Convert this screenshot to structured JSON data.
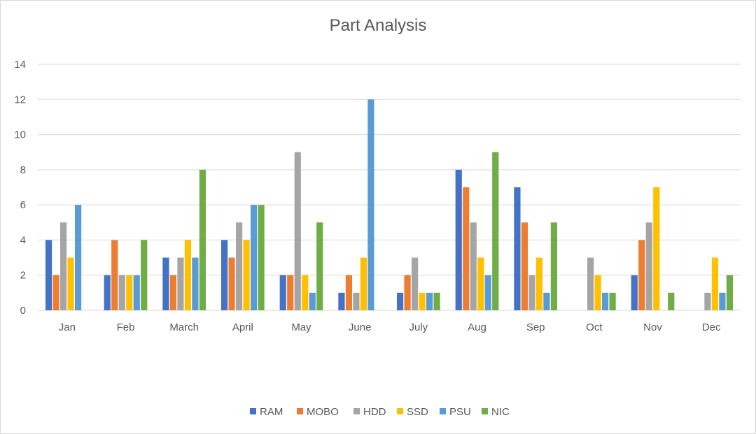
{
  "chart_data": {
    "type": "bar",
    "title": "Part Analysis",
    "xlabel": "",
    "ylabel": "",
    "categories": [
      "Jan",
      "Feb",
      "March",
      "April",
      "May",
      "June",
      "July",
      "Aug",
      "Sep",
      "Oct",
      "Nov",
      "Dec"
    ],
    "y_ticks": [
      "0",
      "2",
      "4",
      "6",
      "8",
      "10",
      "12",
      "14"
    ],
    "ylim": [
      0,
      14
    ],
    "grid": true,
    "legend_position": "bottom",
    "series": [
      {
        "name": "RAM",
        "color": "#4472C4",
        "values": [
          4,
          2,
          3,
          4,
          2,
          1,
          1,
          8,
          7,
          0,
          2,
          0
        ]
      },
      {
        "name": "MOBO",
        "color": "#ED7D31",
        "values": [
          2,
          4,
          2,
          3,
          2,
          2,
          2,
          7,
          5,
          0,
          4,
          0
        ]
      },
      {
        "name": "HDD",
        "color": "#A5A5A5",
        "values": [
          5,
          2,
          3,
          5,
          9,
          1,
          3,
          5,
          2,
          3,
          5,
          1
        ]
      },
      {
        "name": "SSD",
        "color": "#FFC000",
        "values": [
          3,
          2,
          4,
          4,
          2,
          3,
          1,
          3,
          3,
          2,
          7,
          3
        ]
      },
      {
        "name": "PSU",
        "color": "#5B9BD5",
        "values": [
          6,
          2,
          3,
          6,
          1,
          12,
          1,
          2,
          1,
          1,
          0,
          1
        ]
      },
      {
        "name": "NIC",
        "color": "#70AD47",
        "values": [
          0,
          4,
          8,
          6,
          5,
          0,
          1,
          9,
          5,
          1,
          1,
          2
        ]
      }
    ]
  }
}
